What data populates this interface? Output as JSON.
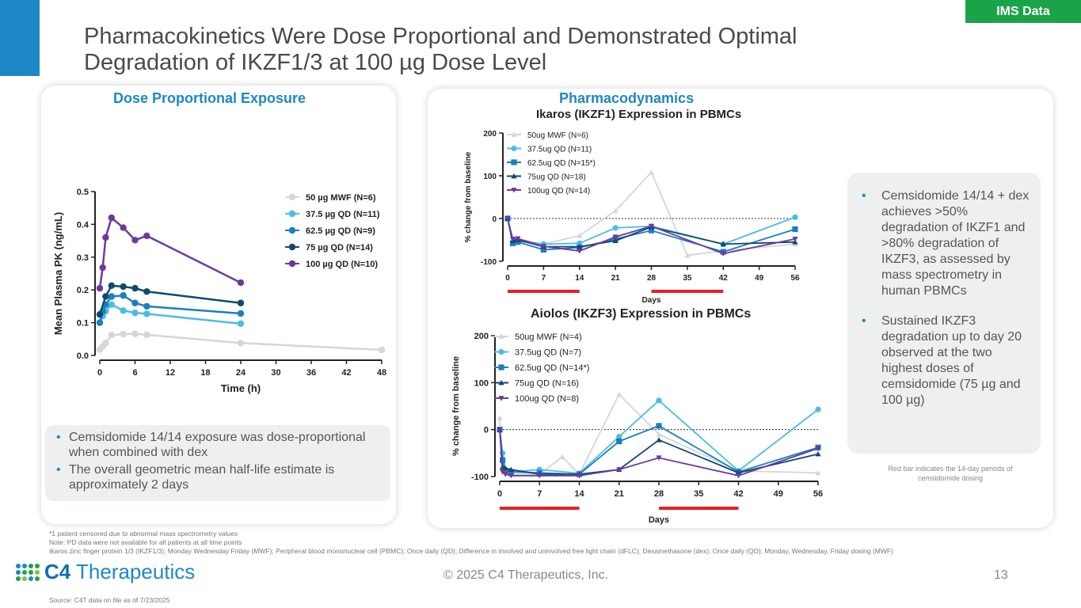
{
  "header": {
    "title_line1": "Pharmacokinetics Were Dose Proportional and Demonstrated Optimal",
    "title_line2": "Degradation of IKZF1/3 at 100 µg Dose Level",
    "tag": "IMS Data"
  },
  "left_panel": {
    "heading": "Dose Proportional Exposure",
    "bullets": [
      "Cemsidomide 14/14 exposure was dose-proportional when combined with dex",
      "The overall geometric mean half-life estimate is approximately 2 days"
    ]
  },
  "right_panel": {
    "heading": "Pharmacodynamics",
    "bullets": [
      "Cemsidomide 14/14 + dex achieves >50% degradation of IKZF1 and >80% degradation of IKZF3, as assessed by mass spectrometry in human PBMCs",
      "Sustained IKZF3 degradation up to day 20 observed at the two highest doses of cemsidomide (75 µg and 100 µg)"
    ],
    "red_bar_note": "Red bar indicates the 14-day periods of cemsidomide dosing"
  },
  "footer": {
    "footnote1": "*1 patient censored due to abnormal mass spectrometry values",
    "footnote2": "Note: PD data were not available for all patients at all time points",
    "footnote3": "Ikaros zinc finger protein 1/3 (IKZF1/3); Monday Wednesday Friday (MWF); Peripheral blood mononuclear cell (PBMC); Once daily (QD); Difference in involved and uninvolved free light chain (dFLC); Dexamethasone (dex); Once daily (QD); Monday, Wednesday, Friday dosing (MWF)",
    "brand_c4": "C4",
    "brand_name": " Therapeutics",
    "copyright": "© 2025 C4 Therapeutics, Inc.",
    "page_number": "13",
    "source": "Source: C4T data on file as of 7/23/2025"
  },
  "colors": {
    "accent": "#1e88c8",
    "green": "#1ba34a",
    "red_bar": "#e8211f",
    "s_mwf": "#d6d6d6",
    "s_375": "#4bbce8",
    "s_625": "#1a7fc0",
    "s_75": "#0f4a6e",
    "s_100": "#6c3a9e"
  },
  "chart_data": [
    {
      "id": "pk",
      "type": "line",
      "title": "",
      "xlabel": "Time (h)",
      "ylabel": "Mean Plasma PK (ng/mL)",
      "xlim": [
        0,
        48
      ],
      "ylim": [
        0,
        0.5
      ],
      "xticks": [
        0,
        6,
        12,
        18,
        24,
        30,
        36,
        42,
        48
      ],
      "yticks": [
        0.0,
        0.1,
        0.2,
        0.3,
        0.4,
        0.5
      ],
      "ytick_labels": [
        "0.0",
        "0.1",
        "0.2",
        "0.3",
        "0.4",
        "0.5"
      ],
      "legend_position": "top-right",
      "series": [
        {
          "name": "50 µg MWF (N=6)",
          "color": "#d6d6d6",
          "marker": "circle",
          "x": [
            0,
            0.5,
            1,
            2,
            4,
            6,
            8,
            24,
            48
          ],
          "y": [
            0.018,
            0.028,
            0.038,
            0.062,
            0.065,
            0.066,
            0.063,
            0.038,
            0.017
          ]
        },
        {
          "name": "37.5 µg QD (N=11)",
          "color": "#4bbce8",
          "marker": "circle",
          "x": [
            0,
            0.5,
            1,
            2,
            4,
            6,
            8,
            24
          ],
          "y": [
            0.1,
            0.12,
            0.135,
            0.155,
            0.137,
            0.13,
            0.127,
            0.097
          ]
        },
        {
          "name": "62.5 µg QD (N=9)",
          "color": "#1a7fc0",
          "marker": "circle",
          "x": [
            0,
            0.5,
            1,
            2,
            4,
            6,
            8,
            24
          ],
          "y": [
            0.1,
            0.135,
            0.155,
            0.18,
            0.183,
            0.16,
            0.15,
            0.128
          ]
        },
        {
          "name": "75 µg QD (N=14)",
          "color": "#0f4a6e",
          "marker": "circle",
          "x": [
            0,
            1,
            2,
            4,
            6,
            8,
            24
          ],
          "y": [
            0.125,
            0.18,
            0.213,
            0.21,
            0.205,
            0.195,
            0.16
          ]
        },
        {
          "name": "100 µg QD (N=10)",
          "color": "#6c3a9e",
          "marker": "circle",
          "x": [
            0,
            0.5,
            1,
            2,
            4,
            6,
            8,
            24
          ],
          "y": [
            0.205,
            0.268,
            0.36,
            0.42,
            0.39,
            0.352,
            0.365,
            0.222
          ]
        }
      ]
    },
    {
      "id": "ikzf1",
      "type": "line",
      "title": "Ikaros (IKZF1) Expression in PBMCs",
      "xlabel": "Days",
      "ylabel": "% change from baseline",
      "xlim": [
        0,
        56
      ],
      "ylim": [
        -100,
        200
      ],
      "xticks": [
        0,
        7,
        14,
        21,
        28,
        35,
        42,
        49,
        56
      ],
      "yticks": [
        -100,
        0,
        100,
        200
      ],
      "legend_position": "top-left",
      "dosing_periods": [
        [
          0,
          14
        ],
        [
          28,
          42
        ]
      ],
      "series": [
        {
          "name": "50ug MWF (N=6)",
          "color": "#d6d6d6",
          "marker": "triangle",
          "x": [
            0,
            1,
            2,
            7,
            14,
            21,
            28,
            35,
            42,
            56
          ],
          "y": [
            0,
            -52,
            -48,
            -60,
            -40,
            18,
            108,
            -86,
            -76,
            -60
          ]
        },
        {
          "name": "37.5ug QD (N=11)",
          "color": "#4bbce8",
          "marker": "circle",
          "x": [
            0,
            1,
            2,
            7,
            14,
            21,
            28,
            42,
            56
          ],
          "y": [
            0,
            -57,
            -53,
            -60,
            -58,
            -22,
            -18,
            -60,
            3
          ]
        },
        {
          "name": "62.5ug QD (N=15*)",
          "color": "#1a7fc0",
          "marker": "square",
          "x": [
            0,
            1,
            2,
            7,
            14,
            21,
            28,
            42,
            56
          ],
          "y": [
            0,
            -58,
            -55,
            -73,
            -68,
            -48,
            -28,
            -78,
            -25
          ]
        },
        {
          "name": "75ug QD (N=18)",
          "color": "#0f4a6e",
          "marker": "triangle",
          "x": [
            0,
            1,
            2,
            7,
            14,
            21,
            28,
            42,
            56
          ],
          "y": [
            0,
            -52,
            -50,
            -66,
            -66,
            -52,
            -20,
            -60,
            -55
          ]
        },
        {
          "name": "100ug QD (N=14)",
          "color": "#6c3a9e",
          "marker": "triangle-down",
          "x": [
            0,
            1,
            2,
            7,
            14,
            21,
            28,
            42,
            56
          ],
          "y": [
            0,
            -48,
            -47,
            -65,
            -76,
            -43,
            -18,
            -82,
            -48
          ]
        }
      ]
    },
    {
      "id": "ikzf3",
      "type": "line",
      "title": "Aiolos (IKZF3) Expression in PBMCs",
      "xlabel": "Days",
      "ylabel": "% change from baseline",
      "xlim": [
        0,
        56
      ],
      "ylim": [
        -100,
        200
      ],
      "xticks": [
        0,
        7,
        14,
        21,
        28,
        35,
        42,
        49,
        56
      ],
      "yticks": [
        -100,
        0,
        100,
        200
      ],
      "legend_position": "top-left",
      "dosing_periods": [
        [
          0,
          14
        ],
        [
          28,
          42
        ]
      ],
      "series": [
        {
          "name": "50ug MWF (N=4)",
          "color": "#d6d6d6",
          "marker": "triangle",
          "x": [
            0,
            0.5,
            1,
            2,
            7,
            11,
            14,
            21,
            28,
            42,
            56
          ],
          "y": [
            25,
            -75,
            -90,
            -95,
            -95,
            -58,
            -95,
            75,
            -10,
            -88,
            -92
          ]
        },
        {
          "name": "37.5ug QD (N=7)",
          "color": "#4bbce8",
          "marker": "circle",
          "x": [
            0,
            0.5,
            1,
            2,
            7,
            14,
            21,
            28,
            42,
            56
          ],
          "y": [
            0,
            -50,
            -85,
            -90,
            -85,
            -93,
            -15,
            62,
            -88,
            43
          ]
        },
        {
          "name": "62.5ug QD (N=14*)",
          "color": "#1a7fc0",
          "marker": "square",
          "x": [
            0,
            0.5,
            1,
            2,
            7,
            14,
            21,
            28,
            42,
            56
          ],
          "y": [
            0,
            -65,
            -88,
            -90,
            -92,
            -95,
            -25,
            8,
            -90,
            -38
          ]
        },
        {
          "name": "75ug QD (N=16)",
          "color": "#0f4a6e",
          "marker": "triangle",
          "x": [
            0,
            0.5,
            1,
            2,
            7,
            14,
            21,
            28,
            42,
            56
          ],
          "y": [
            0,
            -80,
            -82,
            -85,
            -95,
            -95,
            -85,
            -22,
            -92,
            -52
          ]
        },
        {
          "name": "100ug QD (N=8)",
          "color": "#6c3a9e",
          "marker": "triangle-down",
          "x": [
            0,
            0.5,
            1,
            2,
            7,
            14,
            21,
            28,
            42,
            56
          ],
          "y": [
            0,
            -90,
            -95,
            -98,
            -98,
            -98,
            -85,
            -60,
            -98,
            -40
          ]
        }
      ]
    }
  ]
}
